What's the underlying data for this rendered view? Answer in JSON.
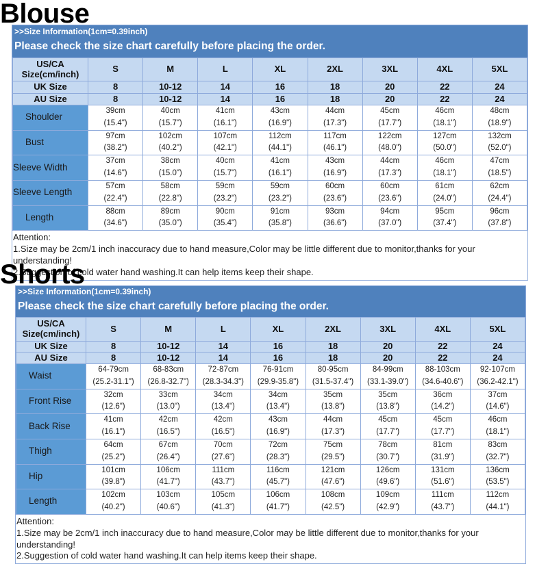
{
  "sizes": [
    "S",
    "M",
    "L",
    "XL",
    "2XL",
    "3XL",
    "4XL",
    "5XL"
  ],
  "uk": [
    "8",
    "10-12",
    "14",
    "16",
    "18",
    "20",
    "22",
    "24"
  ],
  "au": [
    "8",
    "10-12",
    "14",
    "16",
    "18",
    "20",
    "22",
    "24"
  ],
  "size_header": "US/CA Size(cm/inch)",
  "uk_label": "UK Size",
  "au_label": "AU Size",
  "info": ">>Size Information(1cm=0.39inch)",
  "notice": "Please check the size chart carefully before placing the order.",
  "colors": {
    "header_blue": "#4f81bd",
    "label_blue": "#5b9bd5",
    "size_row": "#c5d9f1"
  },
  "blouse": {
    "title": "Blouse",
    "rows": [
      {
        "label": "Shoulder",
        "values": [
          "39cm",
          "40cm",
          "41cm",
          "43cm",
          "44cm",
          "45cm",
          "46cm",
          "48cm"
        ],
        "inches": [
          "(15.4\")",
          "(15.7\")",
          "(16.1\")",
          "(16.9\")",
          "(17.3\")",
          "(17.7\")",
          "(18.1\")",
          "(18.9\")"
        ]
      },
      {
        "label": "Bust",
        "values": [
          "97cm",
          "102cm",
          "107cm",
          "112cm",
          "117cm",
          "122cm",
          "127cm",
          "132cm"
        ],
        "inches": [
          "(38.2\")",
          "(40.2\")",
          "(42.1\")",
          "(44.1\")",
          "(46.1\")",
          "(48.0\")",
          "(50.0\")",
          "(52.0\")"
        ]
      },
      {
        "label": "Sleeve Width",
        "values": [
          "37cm",
          "38cm",
          "40cm",
          "41cm",
          "43cm",
          "44cm",
          "46cm",
          "47cm"
        ],
        "inches": [
          "(14.6\")",
          "(15.0\")",
          "(15.7\")",
          "(16.1\")",
          "(16.9\")",
          "(17.3\")",
          "(18.1\")",
          "(18.5\")"
        ]
      },
      {
        "label": "Sleeve Length",
        "values": [
          "57cm",
          "58cm",
          "59cm",
          "59cm",
          "60cm",
          "60cm",
          "61cm",
          "62cm"
        ],
        "inches": [
          "(22.4\")",
          "(22.8\")",
          "(23.2\")",
          "(23.2\")",
          "(23.6\")",
          "(23.6\")",
          "(24.0\")",
          "(24.4\")"
        ]
      },
      {
        "label": "Length",
        "values": [
          "88cm",
          "89cm",
          "90cm",
          "91cm",
          "93cm",
          "94cm",
          "95cm",
          "96cm"
        ],
        "inches": [
          "(34.6\")",
          "(35.0\")",
          "(35.4\")",
          "(35.8\")",
          "(36.6\")",
          "(37.0\")",
          "(37.4\")",
          "(37.8\")"
        ]
      }
    ],
    "attention": [
      "Attention:",
      "1.Size may be 2cm/1  inch inaccuracy due to hand measure,Color may be little different due to monitor,thanks for your understanding!",
      "2.Suggestion of cold water hand washing.It can help items keep their shape."
    ]
  },
  "shorts": {
    "title": "Shorts",
    "rows": [
      {
        "label": "Waist",
        "values": [
          "64-79cm",
          "68-83cm",
          "72-87cm",
          "76-91cm",
          "80-95cm",
          "84-99cm",
          "88-103cm",
          "92-107cm"
        ],
        "inches": [
          "(25.2-31.1\")",
          "(26.8-32.7\")",
          "(28.3-34.3\")",
          "(29.9-35.8\")",
          "(31.5-37.4\")",
          "(33.1-39.0\")",
          "(34.6-40.6\")",
          "(36.2-42.1\")"
        ]
      },
      {
        "label": "Front Rise",
        "values": [
          "32cm",
          "33cm",
          "34cm",
          "34cm",
          "35cm",
          "35cm",
          "36cm",
          "37cm"
        ],
        "inches": [
          "(12.6\")",
          "(13.0\")",
          "(13.4\")",
          "(13.4\")",
          "(13.8\")",
          "(13.8\")",
          "(14.2\")",
          "(14.6\")"
        ]
      },
      {
        "label": "Back Rise",
        "values": [
          "41cm",
          "42cm",
          "42cm",
          "43cm",
          "44cm",
          "45cm",
          "45cm",
          "46cm"
        ],
        "inches": [
          "(16.1\")",
          "(16.5\")",
          "(16.5\")",
          "(16.9\")",
          "(17.3\")",
          "(17.7\")",
          "(17.7\")",
          "(18.1\")"
        ]
      },
      {
        "label": "Thigh",
        "values": [
          "64cm",
          "67cm",
          "70cm",
          "72cm",
          "75cm",
          "78cm",
          "81cm",
          "83cm"
        ],
        "inches": [
          "(25.2\")",
          "(26.4\")",
          "(27.6\")",
          "(28.3\")",
          "(29.5\")",
          "(30.7\")",
          "(31.9\")",
          "(32.7\")"
        ]
      },
      {
        "label": "Hip",
        "values": [
          "101cm",
          "106cm",
          "111cm",
          "116cm",
          "121cm",
          "126cm",
          "131cm",
          "136cm"
        ],
        "inches": [
          "(39.8\")",
          "(41.7\")",
          "(43.7\")",
          "(45.7\")",
          "(47.6\")",
          "(49.6\")",
          "(51.6\")",
          "(53.5\")"
        ]
      },
      {
        "label": "Length",
        "values": [
          "102cm",
          "103cm",
          "105cm",
          "106cm",
          "108cm",
          "109cm",
          "111cm",
          "112cm"
        ],
        "inches": [
          "(40.2\")",
          "(40.6\")",
          "(41.3\")",
          "(41.7\")",
          "(42.5\")",
          "(42.9\")",
          "(43.7\")",
          "(44.1\")"
        ]
      }
    ],
    "attention": [
      "Attention:",
      "1.Size may be 2cm/1 inch inaccuracy due to hand measure,Color may be little different due to monitor,thanks for your understanding!",
      "2.Suggestion of cold water hand washing.It can help items keep their shape."
    ]
  }
}
